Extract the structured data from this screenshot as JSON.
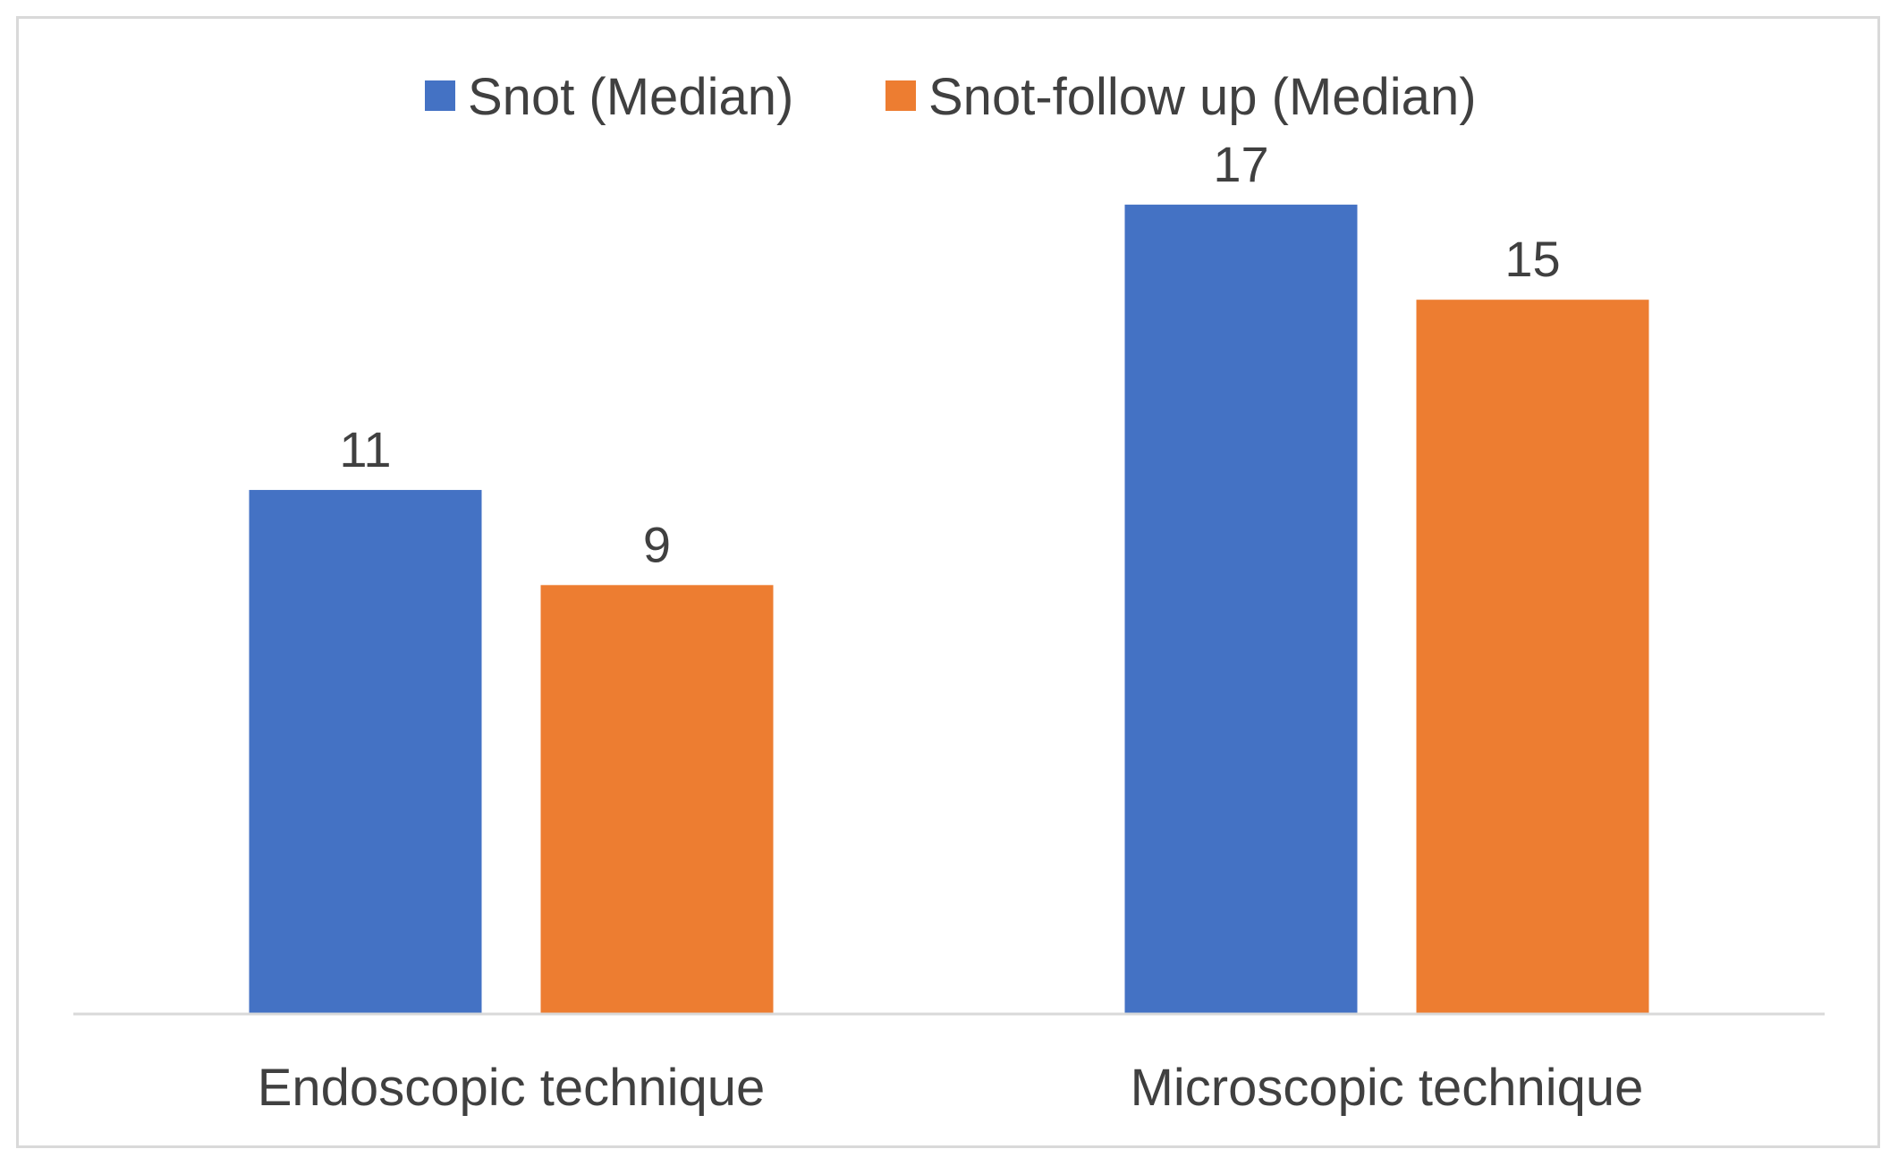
{
  "chart_data": {
    "type": "bar",
    "title": "",
    "xlabel": "",
    "ylabel": "",
    "ylim": [
      0,
      18.2
    ],
    "grid": false,
    "legend_position": "top-center",
    "categories": [
      "Endoscopic technique",
      "Microscopic technique"
    ],
    "series": [
      {
        "name": "Snot (Median)",
        "values": [
          11,
          17
        ],
        "color": "#4472C4"
      },
      {
        "name": "Snot-follow up (Median)",
        "values": [
          9,
          15
        ],
        "color": "#ED7D31"
      }
    ],
    "axis_color": "#d9d9d9"
  }
}
